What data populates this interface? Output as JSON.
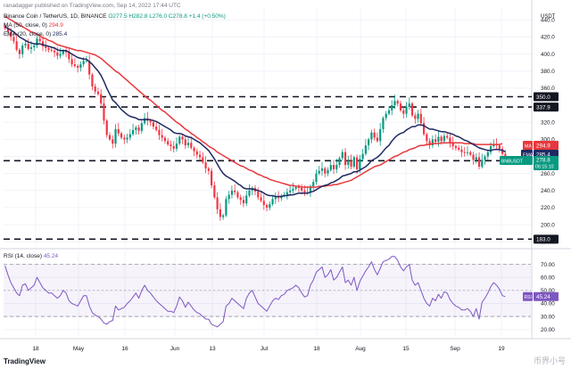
{
  "header": {
    "publish_line": "ranadagger published on TradingView.com, Sep 14, 2022 17:44 UTC",
    "symbol": "Binance Coin / TetherUS, 1D, BINANCE",
    "ohlc": "O277.5  H282.8  L276.0  C278.8  +1.4 (+0.50%)",
    "ma_line": {
      "label": "MA (50, close, 0)",
      "value": "294.9"
    },
    "ema_line": {
      "label": "EMA (20, close, 0)",
      "value": "285.4"
    }
  },
  "footer": {
    "brand": "TradingView",
    "watermark": "币界小号"
  },
  "colors": {
    "ma": "#e8383d",
    "ema": "#1f2a63",
    "up": "#089981",
    "down": "#f23645",
    "rsi": "#7e57c2",
    "level": "#131722",
    "grid": "#f0f3fa",
    "axis_text": "#131722"
  },
  "chart_data": [
    {
      "type": "candlestick",
      "title": "Binance Coin / TetherUS, 1D, BINANCE",
      "currency": "USDT",
      "ylim": [
        175,
        455
      ],
      "y_ticks": [
        180,
        200,
        220,
        240,
        260,
        280,
        300,
        320,
        340,
        360,
        380,
        400,
        420,
        440
      ],
      "x_ticks": [
        "18",
        "May",
        "16",
        "Jun",
        "13",
        "Jul",
        "18",
        "Aug",
        "15",
        "Sep",
        "19"
      ],
      "levels": [
        {
          "label": "350.0",
          "value": 350
        },
        {
          "label": "337.9",
          "value": 337.9
        },
        {
          "label": "275.0",
          "value": 275
        },
        {
          "label": "183.0",
          "value": 183
        }
      ],
      "price_badges": [
        {
          "name": "MA",
          "value": "294.9"
        },
        {
          "name": "EMA",
          "value": "285.4"
        },
        {
          "name": "BNBUSDT",
          "value": "278.8",
          "sub": "06:15:10"
        }
      ],
      "closes": [
        430,
        426,
        420,
        415,
        405,
        400,
        410,
        412,
        406,
        408,
        410,
        418,
        415,
        409,
        407,
        405,
        404,
        402,
        398,
        400,
        404,
        402,
        394,
        388,
        386,
        384,
        388,
        392,
        392,
        376,
        362,
        356,
        353,
        342,
        322,
        305,
        300,
        295,
        312,
        307,
        302,
        300,
        302,
        306,
        311,
        314,
        310,
        319,
        325,
        322,
        320,
        315,
        311,
        305,
        302,
        298,
        294,
        292,
        289,
        295,
        303,
        300,
        293,
        296,
        290,
        286,
        282,
        279,
        273,
        266,
        263,
        246,
        232,
        218,
        209,
        211,
        230,
        235,
        240,
        238,
        232,
        229,
        225,
        234,
        240,
        243,
        239,
        232,
        228,
        223,
        220,
        224,
        230,
        232,
        231,
        234,
        235,
        238,
        240,
        242,
        244,
        243,
        240,
        237,
        238,
        245,
        250,
        260,
        263,
        266,
        260,
        264,
        270,
        265,
        270,
        278,
        285,
        270,
        275,
        268,
        279,
        265,
        277,
        283,
        293,
        300,
        308,
        302,
        298,
        312,
        325,
        330,
        334,
        340,
        345,
        342,
        334,
        330,
        338,
        342,
        328,
        324,
        330,
        319,
        306,
        298,
        293,
        300,
        297,
        303,
        298,
        304,
        302,
        296,
        292,
        290,
        288,
        285,
        284,
        285,
        282,
        276,
        279,
        268,
        276,
        280,
        285,
        292,
        294,
        293,
        289,
        283,
        278.8
      ],
      "ma50": [
        444,
        442,
        440,
        438,
        436,
        434,
        432,
        430,
        428,
        426,
        425,
        423,
        421,
        419,
        418,
        416,
        415,
        413,
        411,
        410,
        409,
        408,
        407,
        406,
        405,
        404,
        404,
        403,
        402,
        401,
        400,
        399,
        397,
        395,
        392,
        389,
        386,
        383,
        380,
        378,
        375,
        372,
        369,
        366,
        363,
        360,
        357,
        354,
        351,
        348,
        346,
        343,
        340,
        337,
        334,
        332,
        329,
        326,
        323,
        320,
        318,
        315,
        312,
        310,
        307,
        305,
        302,
        300,
        297,
        295,
        292,
        290,
        288,
        285,
        283,
        281,
        279,
        277,
        275,
        273,
        271,
        269,
        268,
        266,
        264,
        263,
        261,
        259,
        258,
        256,
        255,
        253,
        252,
        251,
        250,
        249,
        248,
        247,
        246,
        246,
        245,
        245,
        244,
        244,
        244,
        244,
        244,
        244,
        245,
        245,
        245,
        246,
        246,
        247,
        247,
        248,
        249,
        250,
        251,
        252,
        254,
        256,
        258,
        260,
        262,
        264,
        266,
        268,
        269,
        270,
        272,
        274,
        276,
        278,
        280,
        281,
        283,
        285,
        286,
        288,
        289,
        290,
        292,
        293,
        293,
        294,
        294,
        295,
        295,
        295,
        296,
        296,
        296,
        296,
        296,
        296,
        296,
        296,
        295,
        295,
        295,
        295,
        294,
        294,
        294,
        294,
        294,
        294,
        294,
        294,
        294,
        294.9
      ],
      "ema20": [
        432,
        430,
        428,
        426,
        423,
        420,
        418,
        416,
        414,
        413,
        412,
        412,
        412,
        411,
        410,
        409,
        408,
        407,
        405,
        404,
        404,
        404,
        402,
        400,
        398,
        396,
        395,
        394,
        394,
        391,
        388,
        384,
        380,
        375,
        368,
        360,
        353,
        346,
        343,
        339,
        335,
        332,
        329,
        327,
        326,
        325,
        323,
        323,
        323,
        323,
        323,
        322,
        321,
        319,
        317,
        315,
        313,
        311,
        308,
        307,
        307,
        306,
        304,
        303,
        302,
        300,
        298,
        296,
        293,
        290,
        287,
        282,
        277,
        271,
        265,
        260,
        257,
        255,
        253,
        251,
        248,
        246,
        243,
        242,
        242,
        242,
        241,
        240,
        239,
        237,
        235,
        234,
        234,
        233,
        233,
        233,
        234,
        234,
        235,
        235,
        236,
        237,
        237,
        237,
        237,
        238,
        239,
        241,
        243,
        245,
        246,
        247,
        249,
        250,
        252,
        254,
        257,
        258,
        259,
        260,
        262,
        262,
        264,
        266,
        268,
        271,
        275,
        277,
        279,
        282,
        286,
        290,
        293,
        298,
        302,
        305,
        307,
        308,
        311,
        313,
        315,
        315,
        317,
        317,
        316,
        314,
        312,
        312,
        311,
        310,
        309,
        309,
        308,
        307,
        306,
        304,
        303,
        301,
        299,
        298,
        296,
        294,
        292,
        290,
        289,
        288,
        287,
        287,
        288,
        288,
        288,
        287,
        285.4
      ]
    },
    {
      "type": "line",
      "title": "RSI (14, close)",
      "value_label": "45.24",
      "ylim": [
        15,
        80
      ],
      "y_ticks": [
        20,
        30,
        40,
        50,
        60,
        70
      ],
      "y_tick_labels": [
        "20.00",
        "30.00",
        "40.00",
        "50.00",
        "60.00",
        "70.00"
      ],
      "bands": [
        30,
        70
      ],
      "badge": {
        "name": "RSI",
        "value": "45.24"
      },
      "values": [
        69,
        62,
        56,
        52,
        48,
        46,
        54,
        55,
        50,
        52,
        54,
        60,
        56,
        52,
        50,
        48,
        48,
        46,
        44,
        46,
        50,
        48,
        42,
        40,
        39,
        38,
        42,
        46,
        46,
        38,
        33,
        31,
        30,
        28,
        25,
        24,
        26,
        27,
        38,
        35,
        36,
        37,
        40,
        42,
        45,
        48,
        44,
        50,
        54,
        50,
        48,
        45,
        42,
        40,
        38,
        36,
        34,
        34,
        33,
        38,
        45,
        42,
        37,
        41,
        38,
        35,
        33,
        32,
        30,
        28,
        28,
        24,
        23,
        22,
        24,
        26,
        38,
        40,
        44,
        42,
        40,
        38,
        36,
        44,
        48,
        50,
        45,
        40,
        38,
        36,
        34,
        38,
        42,
        44,
        43,
        46,
        47,
        50,
        51,
        52,
        54,
        52,
        48,
        45,
        46,
        54,
        58,
        64,
        66,
        68,
        60,
        62,
        66,
        58,
        60,
        64,
        68,
        56,
        58,
        54,
        60,
        50,
        57,
        61,
        65,
        68,
        72,
        66,
        62,
        67,
        72,
        73,
        74,
        76,
        76,
        73,
        68,
        65,
        68,
        70,
        58,
        54,
        56,
        50,
        44,
        40,
        38,
        44,
        42,
        47,
        44,
        49,
        48,
        43,
        40,
        38,
        37,
        35,
        35,
        36,
        34,
        30,
        36,
        28,
        41,
        44,
        48,
        53,
        56,
        54,
        51,
        46,
        45.24
      ]
    }
  ]
}
